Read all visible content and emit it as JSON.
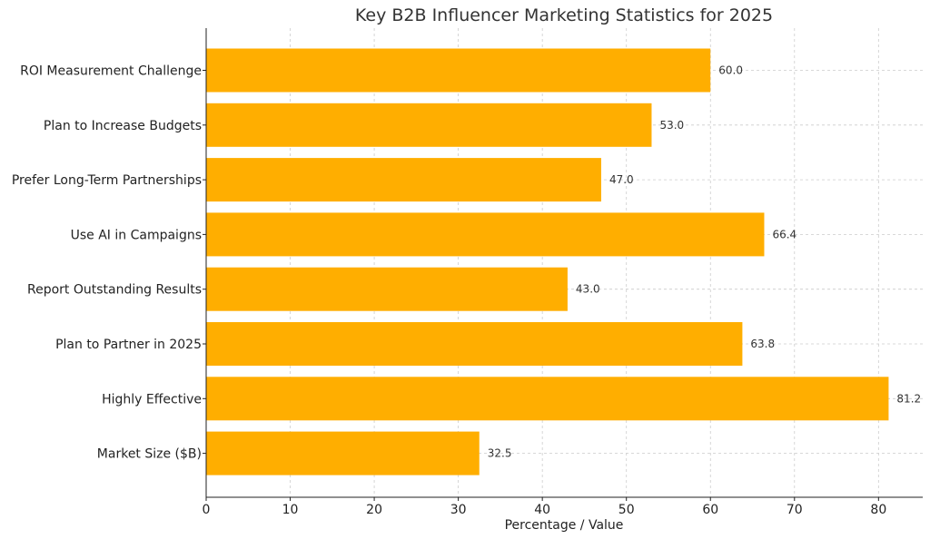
{
  "chart_data": {
    "type": "bar",
    "orientation": "horizontal",
    "title": "Key B2B Influencer Marketing Statistics for 2025",
    "xlabel": "Percentage / Value",
    "ylabel": "",
    "categories": [
      "ROI Measurement Challenge",
      "Plan to Increase Budgets",
      "Prefer Long-Term Partnerships",
      "Use AI in Campaigns",
      "Report Outstanding Results",
      "Plan to Partner in 2025",
      "Highly Effective",
      "Market Size ($B)"
    ],
    "values": [
      60.0,
      53.0,
      47.0,
      66.4,
      43.0,
      63.8,
      81.2,
      32.5
    ],
    "value_labels": [
      "60.0",
      "53.0",
      "47.0",
      "66.4",
      "43.0",
      "63.8",
      "81.2",
      "32.5"
    ],
    "xlim": [
      0,
      85.26
    ],
    "xticks": [
      0,
      10,
      20,
      30,
      40,
      50,
      60,
      70,
      80
    ],
    "xtick_labels": [
      "0",
      "10",
      "20",
      "30",
      "40",
      "50",
      "60",
      "70",
      "80"
    ],
    "grid": true,
    "bar_color": "#FFAE00"
  }
}
